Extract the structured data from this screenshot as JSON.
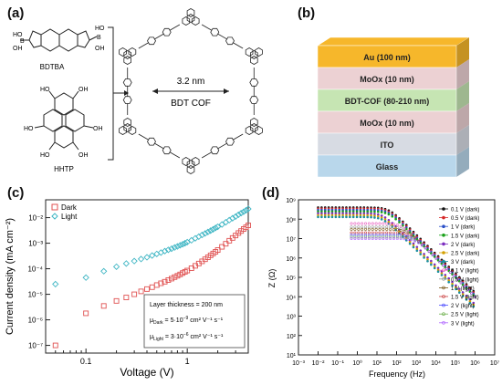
{
  "figure": {
    "panel_a": {
      "label": "(a)",
      "monomer1": "BDTBA",
      "monomer2": "HHTP",
      "pore_size": "3.2 nm",
      "cof_name": "BDT COF",
      "boronic_groups": [
        "HO",
        "OH",
        "B",
        "HO",
        "B",
        "OH"
      ],
      "hhtp_groups": [
        "HO",
        "OH",
        "HO",
        "OH",
        "OH",
        "HO"
      ]
    },
    "panel_b": {
      "label": "(b)",
      "layers": [
        {
          "text": "Au (100 nm)",
          "color": "#f6b72b"
        },
        {
          "text": "MoOx (10 nm)",
          "color": "#ecd1d3"
        },
        {
          "text": "BDT-COF (80-210 nm)",
          "color": "#c6e5b3"
        },
        {
          "text": "MoOx (10 nm)",
          "color": "#ecd1d3"
        },
        {
          "text": "ITO",
          "color": "#d7dbe3"
        },
        {
          "text": "Glass",
          "color": "#b9d7eb"
        }
      ]
    },
    "panel_c": {
      "label": "(c)",
      "legend": {
        "dark": "Dark",
        "light": "Light"
      },
      "annotation": {
        "line1": "Layer thickness = 200 nm",
        "line2_prefix": "μ",
        "line2_sub": "Dark",
        "line2_value": " = 5·10",
        "line2_exp": "−9",
        "line2_unit": " cm² V⁻¹ s⁻¹",
        "line3_prefix": "μ",
        "line3_sub": "Light",
        "line3_value": " = 3·10",
        "line3_exp": "−6",
        "line3_unit": " cm² V⁻¹ s⁻¹"
      }
    },
    "panel_d": {
      "label": "(d)"
    }
  },
  "chart_data": [
    {
      "type": "scatter",
      "panel": "c",
      "xlabel": "Voltage (V)",
      "ylabel": "Current density (mA cm⁻²)",
      "xscale": "log",
      "yscale": "log",
      "xlim": [
        0.04,
        4
      ],
      "ylim": [
        5e-08,
        0.05
      ],
      "x_ticks": [
        "0.1",
        "1"
      ],
      "y_ticks": [
        "10⁻⁷",
        "10⁻⁶",
        "10⁻⁵",
        "10⁻⁴",
        "10⁻³",
        "10⁻²"
      ],
      "series": [
        {
          "name": "Dark",
          "color": "#e05252",
          "marker": "square",
          "x": [
            0.05,
            0.1,
            0.15,
            0.2,
            0.25,
            0.3,
            0.35,
            0.4,
            0.45,
            0.5,
            0.55,
            0.6,
            0.65,
            0.7,
            0.75,
            0.8,
            0.85,
            0.9,
            0.95,
            1.0,
            1.1,
            1.2,
            1.3,
            1.4,
            1.5,
            1.6,
            1.7,
            1.8,
            1.9,
            2.0,
            2.2,
            2.4,
            2.6,
            2.8,
            3.0,
            3.2,
            3.4,
            3.6,
            3.8,
            4.0
          ],
          "y": [
            1e-07,
            1.8e-06,
            3.5e-06,
            5.5e-06,
            7.5e-06,
            1e-05,
            1.3e-05,
            1.6e-05,
            1.9e-05,
            2.3e-05,
            2.7e-05,
            3.1e-05,
            3.6e-05,
            4.1e-05,
            4.7e-05,
            5.3e-05,
            6e-05,
            6.8e-05,
            7.6e-05,
            8.5e-05,
            0.000105,
            0.00013,
            0.00016,
            0.000195,
            0.000235,
            0.00028,
            0.000335,
            0.000395,
            0.00046,
            0.00054,
            0.00072,
            0.00095,
            0.00125,
            0.0016,
            0.002,
            0.0025,
            0.003,
            0.0036,
            0.0042,
            0.005
          ]
        },
        {
          "name": "Light",
          "color": "#3fb6c4",
          "marker": "diamond",
          "x": [
            0.05,
            0.1,
            0.15,
            0.2,
            0.25,
            0.3,
            0.35,
            0.4,
            0.45,
            0.5,
            0.55,
            0.6,
            0.65,
            0.7,
            0.75,
            0.8,
            0.85,
            0.9,
            0.95,
            1.0,
            1.1,
            1.2,
            1.3,
            1.4,
            1.5,
            1.6,
            1.7,
            1.8,
            1.9,
            2.0,
            2.2,
            2.4,
            2.6,
            2.8,
            3.0,
            3.2,
            3.4,
            3.6,
            3.8,
            4.0
          ],
          "y": [
            2.5e-05,
            4.5e-05,
            8e-05,
            0.00012,
            0.00016,
            0.0002,
            0.00024,
            0.00028,
            0.00033,
            0.00038,
            0.00043,
            0.00049,
            0.00055,
            0.00061,
            0.00068,
            0.00075,
            0.00083,
            0.00091,
            0.001,
            0.0011,
            0.0013,
            0.00155,
            0.0018,
            0.0021,
            0.0024,
            0.00275,
            0.0031,
            0.0035,
            0.00395,
            0.0044,
            0.0054,
            0.0066,
            0.008,
            0.0095,
            0.011,
            0.013,
            0.015,
            0.017,
            0.0195,
            0.022
          ]
        }
      ]
    },
    {
      "type": "scatter",
      "panel": "d",
      "xlabel": "Frequency (Hz)",
      "ylabel": "Z (Ω)",
      "xscale": "log",
      "yscale": "log",
      "xlim": [
        0.001,
        10000000.0
      ],
      "ylim": [
        10,
        1000000000.0
      ],
      "x_ticks": [
        "10⁻³",
        "10⁻²",
        "10⁻¹",
        "10⁰",
        "10¹",
        "10²",
        "10³",
        "10⁴",
        "10⁵",
        "10⁶",
        "10⁷"
      ],
      "y_ticks": [
        "10¹",
        "10²",
        "10³",
        "10⁴",
        "10⁵",
        "10⁶",
        "10⁷",
        "10⁸",
        "10⁹"
      ],
      "legend": [
        "0.1 V (dark)",
        "0.5 V (dark)",
        "1 V (dark)",
        "1.5 V (dark)",
        "2 V (dark)",
        "2.5 V (dark)",
        "3 V (dark)",
        "0.1 V (light)",
        "0.5 V (light)",
        "1 V (light)",
        "1.5 V (light)",
        "2 V (light)",
        "2.5 V (light)",
        "3 V (light)"
      ],
      "legend_colors": [
        "#111111",
        "#d62828",
        "#2b50c8",
        "#18a018",
        "#7b2cbf",
        "#d4a000",
        "#1a8fa0",
        "#e85dbf",
        "#9a9a9a",
        "#7a5c1f",
        "#c83a3a",
        "#4d4dff",
        "#6fb04f",
        "#b066ff"
      ],
      "dark_plateau_start_Hz": [
        0.01,
        0.01,
        0.01,
        0.01,
        0.01,
        0.01,
        0.01
      ],
      "dark_plateau_Z": [
        400000000.0,
        350000000.0,
        300000000.0,
        250000000.0,
        200000000.0,
        160000000.0,
        130000000.0
      ],
      "light_start_Hz": [
        0.5,
        0.5,
        0.5,
        0.5,
        0.5,
        0.5,
        0.5
      ],
      "light_plateau_Z": [
        60000000.0,
        40000000.0,
        30000000.0,
        20000000.0,
        15000000.0,
        12000000.0,
        10000000.0
      ],
      "tail_end_Hz": 1000000.0,
      "tail_end_Z": 150
    }
  ]
}
